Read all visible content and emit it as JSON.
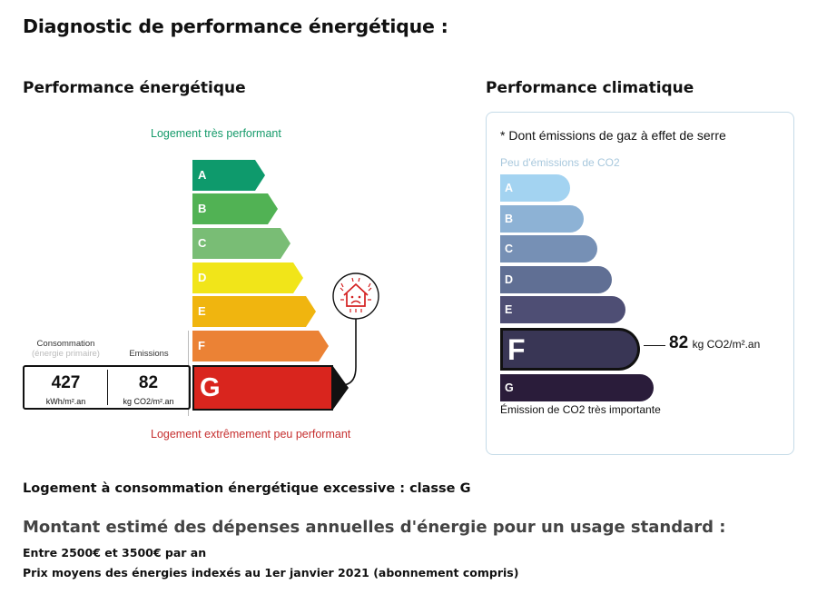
{
  "page": {
    "title": "Diagnostic de performance énergétique :"
  },
  "energy": {
    "title": "Performance énergétique",
    "top_caption": "Logement très performant",
    "bottom_caption": "Logement extrêmement peu performant",
    "classes": [
      {
        "letter": "A",
        "color": "#0e9a6c"
      },
      {
        "letter": "B",
        "color": "#51b254"
      },
      {
        "letter": "C",
        "color": "#79bd75"
      },
      {
        "letter": "D",
        "color": "#f1e519"
      },
      {
        "letter": "E",
        "color": "#f0b50f"
      },
      {
        "letter": "F",
        "color": "#eb8235"
      },
      {
        "letter": "G",
        "color": "#d9251e"
      }
    ],
    "current_class": "G",
    "consumption": {
      "label": "Consommation",
      "sublabel": "(énergie primaire)",
      "value": "427",
      "unit": "kWh/m².an"
    },
    "emissions": {
      "label": "Emissions",
      "value": "82",
      "unit": "kg CO2/m².an"
    }
  },
  "climate": {
    "title": "Performance climatique",
    "note": "* Dont émissions de gaz à effet de serre",
    "top_caption": "Peu d'émissions de CO2",
    "bottom_caption": "Émission de CO2 très importante",
    "classes": [
      {
        "letter": "A",
        "color": "#a3d3f1"
      },
      {
        "letter": "B",
        "color": "#8db2d5"
      },
      {
        "letter": "C",
        "color": "#7690b5"
      },
      {
        "letter": "D",
        "color": "#606f94"
      },
      {
        "letter": "E",
        "color": "#4e4e74"
      },
      {
        "letter": "F",
        "color": "#393655"
      },
      {
        "letter": "G",
        "color": "#2a1c3a"
      }
    ],
    "current_class": "F",
    "value": "82",
    "unit": "kg CO2/m².an"
  },
  "summary": {
    "excessive": "Logement à consommation énergétique excessive : classe G",
    "costs_title": "Montant estimé des dépenses annuelles d'énergie pour un usage standard :",
    "range": "Entre 2500€ et 3500€ par an",
    "prices_note": "Prix moyens des énergies indexés au 1er janvier 2021 (abonnement compris)"
  }
}
